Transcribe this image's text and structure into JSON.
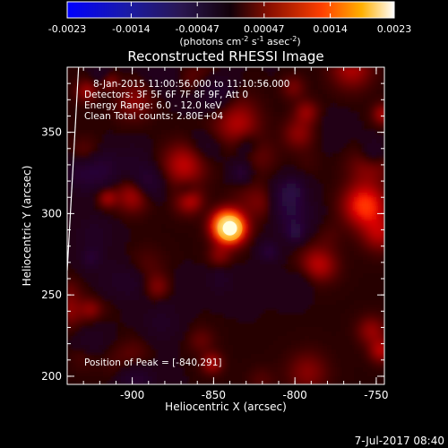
{
  "colorbar": {
    "ticks": [
      "-0.0023",
      "-0.0014",
      "-0.00047",
      "0.00047",
      "0.0014",
      "0.0023"
    ],
    "unit_main": "(photons cm",
    "unit_exp1": "-2",
    "unit_mid1": " s",
    "unit_exp2": "-1",
    "unit_mid2": " asec",
    "unit_exp3": "-2",
    "unit_end": ")"
  },
  "annotations": {
    "time_range": "8-Jan-2015 11:00:56.000 to 11:10:56.000",
    "detectors": "Detectors: 3F 5F 6F 7F 8F 9F, Att 0",
    "energy": "Energy Range: 6.0 - 12.0 keV",
    "clean": "Clean   Total counts: 2.80E+04",
    "peak": "Position of Peak = [-840,291]"
  },
  "footer": {
    "date": "7-Jul-2017 08:40"
  },
  "chart_data": {
    "type": "heatmap",
    "title": "Reconstructed RHESSI Image",
    "xlabel": "Heliocentric X (arcsec)",
    "ylabel": "Heliocentric Y (arcsec)",
    "xlim": [
      -940,
      -745
    ],
    "ylim": [
      195,
      390
    ],
    "x_ticks": [
      -900,
      -850,
      -800,
      -750
    ],
    "y_ticks": [
      200,
      250,
      300,
      350
    ],
    "x_tick_labels": [
      "-900",
      "-850",
      "-800",
      "-750"
    ],
    "y_tick_labels": [
      "200",
      "250",
      "300",
      "350"
    ],
    "colorbar_range": [
      -0.0023,
      0.0023
    ],
    "colormap": "hot-blue",
    "peak": {
      "x": -840,
      "y": 291,
      "value": 0.0023
    },
    "secondary_sources": [
      {
        "x": -757,
        "y": 305,
        "value": 0.0011
      },
      {
        "x": -868,
        "y": 330,
        "value": 0.0007
      },
      {
        "x": -835,
        "y": 355,
        "value": 0.0006
      }
    ],
    "limb": [
      [
        -933,
        390
      ],
      [
        -940,
        265
      ]
    ],
    "grid": false
  }
}
